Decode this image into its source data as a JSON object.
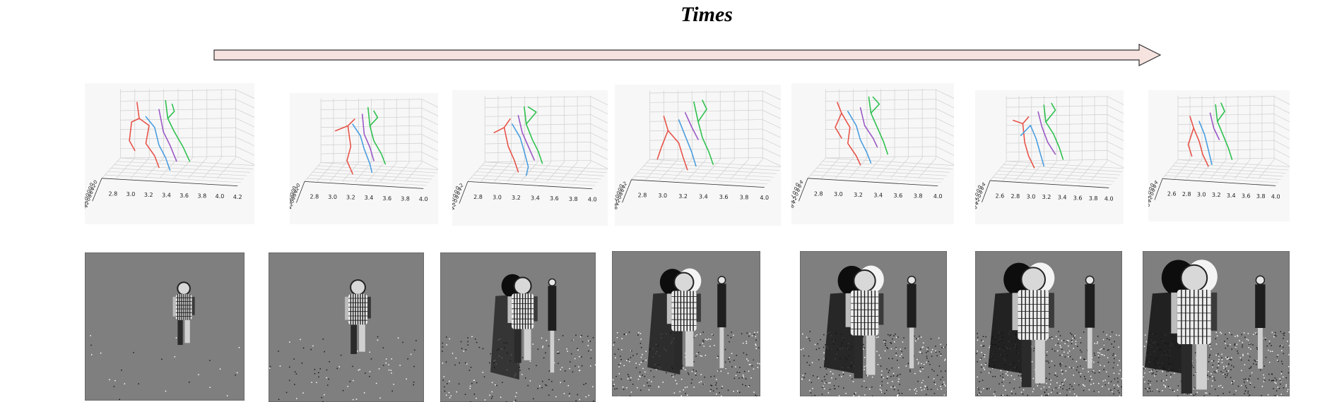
{
  "title": "Times",
  "arrow": {
    "fill": "#f6e3df",
    "stroke": "#333333"
  },
  "limb_colors": {
    "right": "#e8544a",
    "left": "#4a9ee0",
    "torso": "#9b59c6",
    "other": "#2fc14f"
  },
  "skeleton_panels": [
    {
      "z_ticks": [
        "0.8",
        "0.6",
        "0.4",
        "0.2",
        "0.0",
        "-0.2",
        "-0.4",
        "-0.6"
      ],
      "x_ticks": [
        "2.8",
        "3.0",
        "3.2",
        "3.4",
        "3.6",
        "3.8",
        "4.0",
        "4.2"
      ],
      "y_ticks": [
        "0.0",
        "0.2",
        "0.4",
        "0.6",
        "0.8",
        "1.0",
        "1.2",
        "1.4"
      ]
    },
    {
      "z_ticks": [
        "0.",
        "0.",
        "0.",
        "0.",
        "0.",
        "-0.",
        "-0.",
        "-0."
      ],
      "x_ticks": [
        "2.8",
        "3.0",
        "3.2",
        "3.4",
        "3.6",
        "3.8",
        "4.0"
      ],
      "y_ticks": [
        "0.0",
        "0.2",
        "0.4",
        "0.6",
        "0.8",
        "1.0",
        "1.2",
        "1.4"
      ]
    },
    {
      "z_ticks": [
        "0.8",
        "0.6",
        "0.4",
        "0.2",
        "0.0",
        "-0.2",
        "-0.4",
        "-0.6"
      ],
      "x_ticks": [
        "2.8",
        "3.0",
        "3.2",
        "3.4",
        "3.6",
        "3.8",
        "4.0"
      ],
      "y_ticks": [
        "0.2",
        "0.4",
        "0.6",
        "0.8",
        "1.0",
        "1.2",
        "1.4"
      ]
    },
    {
      "z_ticks": [
        "0.8",
        "0.6",
        "0.4",
        "0.2",
        "0.0",
        "-0.2",
        "-0.4",
        "-0.6"
      ],
      "x_ticks": [
        "2.8",
        "3.0",
        "3.2",
        "3.4",
        "3.6",
        "3.8",
        "4.0"
      ],
      "y_ticks": [
        "0.2",
        "0.4",
        "0.6",
        "0.8",
        "1.0",
        "1.2",
        "1.4",
        "1.6"
      ]
    },
    {
      "z_ticks": [
        "0.8",
        "0.6",
        "0.4",
        "0.2",
        "0.0",
        "-0.2",
        "-0.4",
        "-0.6"
      ],
      "x_ticks": [
        "2.8",
        "3.0",
        "3.2",
        "3.4",
        "3.6",
        "3.8",
        "4.0"
      ],
      "y_ticks": [
        "0.4",
        "0.6",
        "0.8",
        "1.0",
        "1.2",
        "1.4",
        "1.6"
      ]
    },
    {
      "z_ticks": [
        "0.8",
        "0.6",
        "0.4",
        "0.2",
        "0.0",
        "-0.2",
        "-0.4",
        "-0.6"
      ],
      "x_ticks": [
        "2.6",
        "2.8",
        "3.0",
        "3.2",
        "3.4",
        "3.6",
        "3.8",
        "4.0"
      ],
      "y_ticks": [
        "0.4",
        "0.6",
        "0.8",
        "1.0",
        "1.2",
        "1.4",
        "1.6"
      ]
    },
    {
      "z_ticks": [
        "0.6",
        "0.4",
        "0.2",
        "0.0",
        "-0.2",
        "-0.4",
        "-0.6"
      ],
      "x_ticks": [
        "2.6",
        "2.8",
        "3.0",
        "3.2",
        "3.4",
        "3.6",
        "3.8",
        "4.0"
      ],
      "y_ticks": [
        "0.4",
        "0.6",
        "0.8",
        "1.0",
        "1.2",
        "1.4",
        "1.6"
      ]
    }
  ],
  "event_frames": [
    {
      "density": 0.15
    },
    {
      "density": 0.35
    },
    {
      "density": 0.55
    },
    {
      "density": 0.7
    },
    {
      "density": 0.8
    },
    {
      "density": 0.88
    },
    {
      "density": 0.92
    }
  ]
}
